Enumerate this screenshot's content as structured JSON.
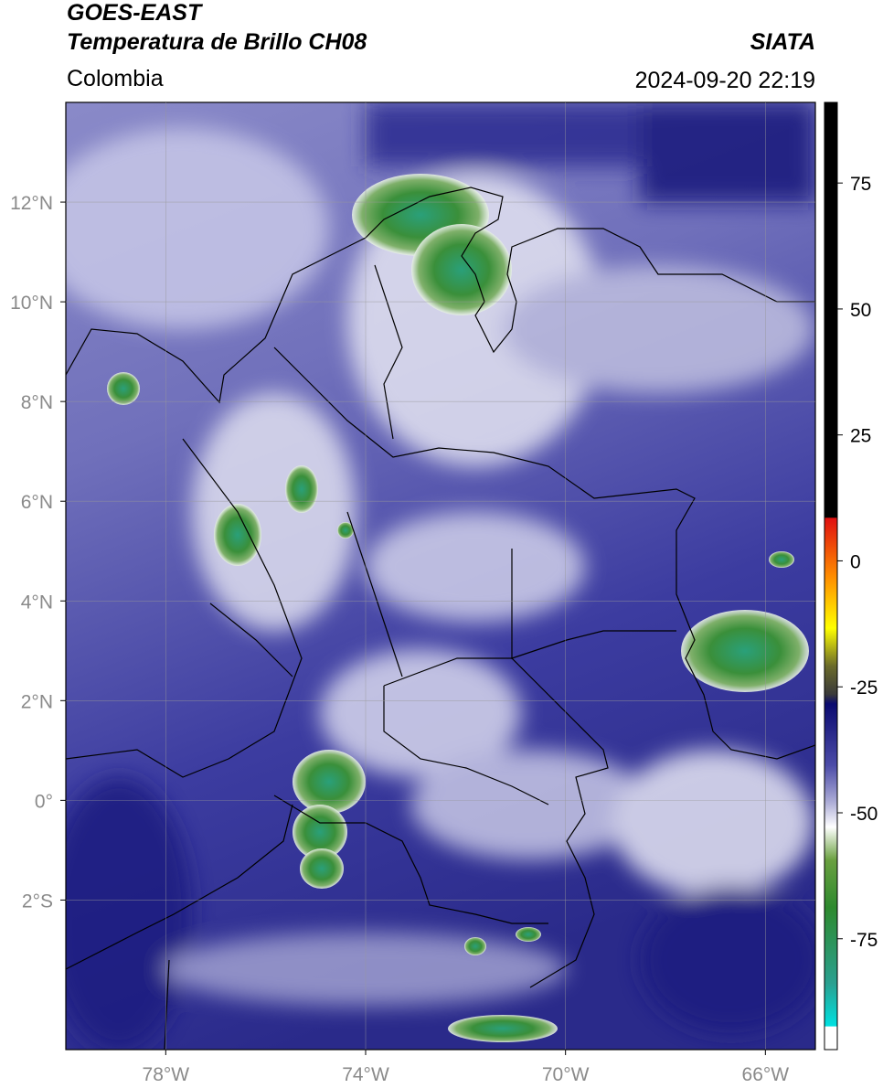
{
  "header": {
    "title": "GOES-EAST",
    "subtitle": "Temperatura de Brillo CH08",
    "region": "Colombia",
    "source": "SIATA",
    "timestamp": "2024-09-20 22:19"
  },
  "map": {
    "xlim": [
      -80,
      -65
    ],
    "ylim": [
      -5,
      14
    ],
    "xticks": [
      {
        "value": -78,
        "label": "78°W"
      },
      {
        "value": -74,
        "label": "74°W"
      },
      {
        "value": -70,
        "label": "70°W"
      },
      {
        "value": -66,
        "label": "66°W"
      }
    ],
    "yticks": [
      {
        "value": 12,
        "label": "12°N"
      },
      {
        "value": 10,
        "label": "10°N"
      },
      {
        "value": 8,
        "label": "8°N"
      },
      {
        "value": 6,
        "label": "6°N"
      },
      {
        "value": 4,
        "label": "4°N"
      },
      {
        "value": 2,
        "label": "2°N"
      },
      {
        "value": 0,
        "label": "0°"
      },
      {
        "value": -2,
        "label": "2°S"
      }
    ]
  },
  "colorbar": {
    "clim": [
      -97,
      91
    ],
    "ticks": [
      75,
      50,
      25,
      0,
      -25,
      -50,
      -75
    ]
  }
}
